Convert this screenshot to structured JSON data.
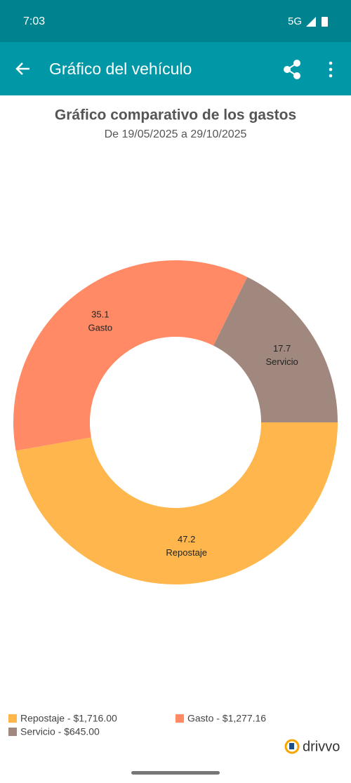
{
  "status_bar": {
    "time": "7:03",
    "network": "5G"
  },
  "app_bar": {
    "title": "Gráfico del vehículo"
  },
  "brand": "drivvo",
  "chart_data": {
    "type": "donut",
    "title": "Gráfico comparativo de los gastos",
    "subtitle": "De 19/05/2025 a 29/10/2025",
    "categories": [
      "Repostaje",
      "Gasto",
      "Servicio"
    ],
    "values": [
      47.2,
      35.1,
      17.7
    ],
    "colors": [
      "#ffb74d",
      "#ff8a65",
      "#a1887f"
    ],
    "legend_labels": [
      "Repostaje - $1,716.00",
      "Gasto - $1,277.16",
      "Servicio - $645.00"
    ]
  }
}
